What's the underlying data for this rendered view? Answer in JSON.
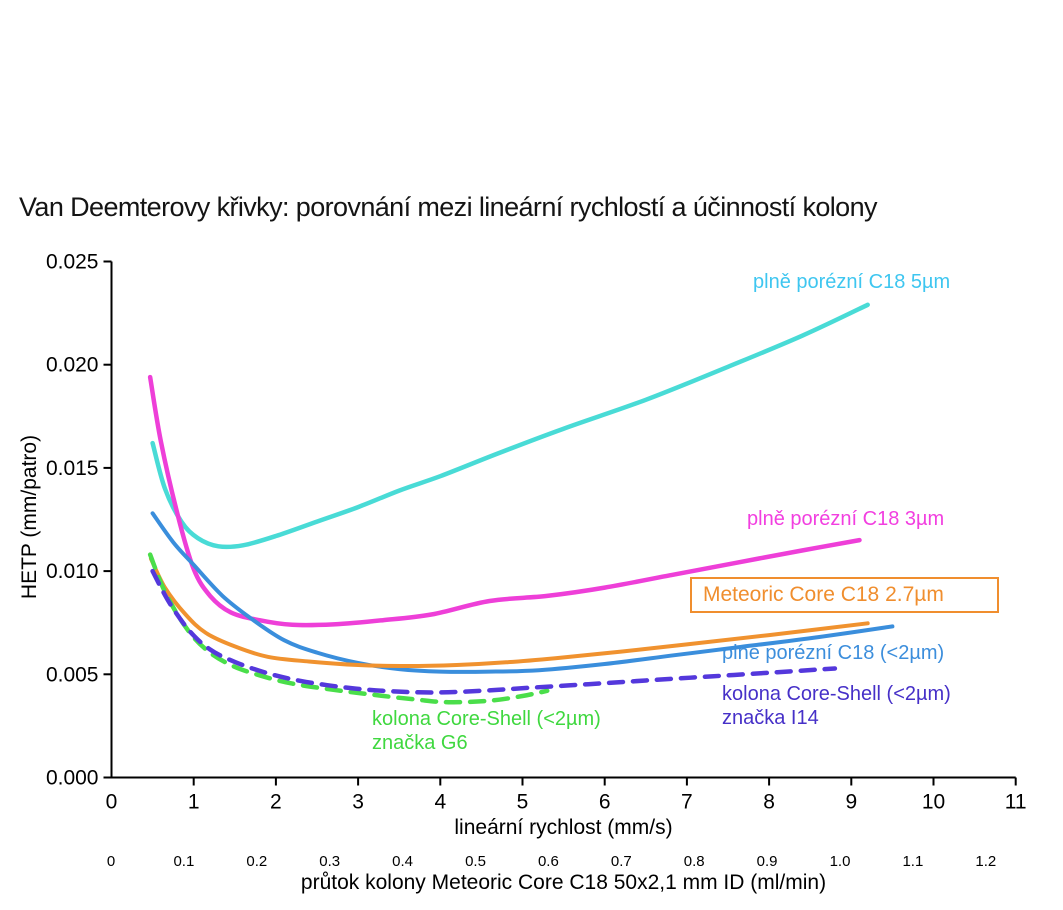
{
  "chart_data": {
    "type": "line",
    "title": "Van Deemterovy křivky: porovnání mezi lineární rychlostí a účinností kolony",
    "xlabel": "lineární rychlost (mm/s)",
    "x2label": "průtok kolony Meteoric Core C18 50x2,1 mm ID (ml/min)",
    "ylabel": "HETP (mm/patro)",
    "xlim": [
      0,
      11
    ],
    "ylim": [
      0.0,
      0.025
    ],
    "grid": false,
    "axis_color": "#000000",
    "legend_position": "inline-annotations",
    "x_ticks": [
      0,
      1,
      2,
      3,
      4,
      5,
      6,
      7,
      8,
      9,
      10,
      11
    ],
    "y_ticks": [
      "0.000",
      "0.005",
      "0.010",
      "0.015",
      "0.020",
      "0.025"
    ],
    "x2_ticks": [
      "0",
      "0.1",
      "0.2",
      "0.3",
      "0.4",
      "0.5",
      "0.6",
      "0.7",
      "0.8",
      "0.9",
      "1.0",
      "1.1",
      "1.2"
    ],
    "series": [
      {
        "id": "plne-porezni-c18-5um",
        "name": "plně porézní C18 5µm",
        "label_lines": [
          "plně porézní C18 5µm"
        ],
        "color": "#49DBD6",
        "label_color": "#3EC6F0",
        "dashed": false,
        "boxed": false,
        "stroke_width": 4.5,
        "points": [
          [
            0.5,
            0.0162
          ],
          [
            0.65,
            0.014
          ],
          [
            0.85,
            0.0124
          ],
          [
            1.05,
            0.0116
          ],
          [
            1.3,
            0.0112
          ],
          [
            1.6,
            0.01125
          ],
          [
            2.0,
            0.0117
          ],
          [
            2.5,
            0.0124
          ],
          [
            3.0,
            0.0131
          ],
          [
            3.5,
            0.0139
          ],
          [
            4.0,
            0.0146
          ],
          [
            4.7,
            0.0157
          ],
          [
            5.5,
            0.0169
          ],
          [
            6.5,
            0.0183
          ],
          [
            7.5,
            0.0199
          ],
          [
            8.4,
            0.0214
          ],
          [
            9.2,
            0.0229
          ]
        ]
      },
      {
        "id": "plne-porezni-c18-3um",
        "name": "plně porézní C18 3µm",
        "label_lines": [
          "plně porézní C18 3µm"
        ],
        "color": "#EE3FD8",
        "label_color": "#F23FE0",
        "dashed": false,
        "boxed": false,
        "stroke_width": 4.5,
        "points": [
          [
            0.47,
            0.0194
          ],
          [
            0.6,
            0.0163
          ],
          [
            0.8,
            0.0128
          ],
          [
            1.0,
            0.0101
          ],
          [
            1.2,
            0.0088
          ],
          [
            1.45,
            0.008
          ],
          [
            1.8,
            0.00762
          ],
          [
            2.2,
            0.0074
          ],
          [
            2.7,
            0.00742
          ],
          [
            3.3,
            0.00762
          ],
          [
            3.9,
            0.0079
          ],
          [
            4.6,
            0.00855
          ],
          [
            5.3,
            0.0088
          ],
          [
            6.0,
            0.0092
          ],
          [
            6.8,
            0.0098
          ],
          [
            7.6,
            0.0104
          ],
          [
            8.4,
            0.011
          ],
          [
            9.1,
            0.0115
          ]
        ]
      },
      {
        "id": "plne-porezni-c18-sub2um",
        "name": "plně porézní C18 (<2µm)",
        "label_lines": [
          "plně porézní C18 (<2µm)"
        ],
        "color": "#3A8EDC",
        "label_color": "#3C8EDC",
        "dashed": false,
        "boxed": false,
        "stroke_width": 4,
        "points": [
          [
            0.5,
            0.0128
          ],
          [
            0.75,
            0.0114
          ],
          [
            1.0,
            0.0103
          ],
          [
            1.35,
            0.0088
          ],
          [
            1.7,
            0.0077
          ],
          [
            2.1,
            0.00665
          ],
          [
            2.5,
            0.00605
          ],
          [
            3.0,
            0.00555
          ],
          [
            3.5,
            0.00525
          ],
          [
            4.0,
            0.00513
          ],
          [
            4.6,
            0.00513
          ],
          [
            5.2,
            0.0052
          ],
          [
            6.0,
            0.0055
          ],
          [
            6.8,
            0.0059
          ],
          [
            7.6,
            0.0063
          ],
          [
            8.6,
            0.0068
          ],
          [
            9.5,
            0.00732
          ]
        ]
      },
      {
        "id": "meteoric-core-c18-2-7um",
        "name": "Meteoric Core C18 2.7µm",
        "label_lines": [
          "Meteoric Core C18 2.7µm"
        ],
        "color": "#F0922F",
        "label_color": "#F08E2E",
        "dashed": false,
        "boxed": true,
        "stroke_width": 4,
        "points": [
          [
            0.48,
            0.0106
          ],
          [
            0.65,
            0.0092
          ],
          [
            0.9,
            0.0079
          ],
          [
            1.15,
            0.007
          ],
          [
            1.5,
            0.00635
          ],
          [
            1.9,
            0.00585
          ],
          [
            2.4,
            0.00562
          ],
          [
            3.0,
            0.00545
          ],
          [
            3.6,
            0.0054
          ],
          [
            4.2,
            0.00545
          ],
          [
            4.8,
            0.00558
          ],
          [
            5.4,
            0.00578
          ],
          [
            6.2,
            0.0061
          ],
          [
            7.0,
            0.00645
          ],
          [
            8.0,
            0.0069
          ],
          [
            9.2,
            0.00747
          ]
        ]
      },
      {
        "id": "core-shell-g6",
        "name": "kolona Core-Shell (<2µm) značka G6",
        "label_lines": [
          "kolona Core-Shell (<2µm)",
          "značka G6"
        ],
        "color": "#4ADE4A",
        "label_color": "#3FD83F",
        "dashed": true,
        "boxed": false,
        "stroke_width": 4.5,
        "points": [
          [
            0.47,
            0.0108
          ],
          [
            0.65,
            0.009
          ],
          [
            0.9,
            0.0073
          ],
          [
            1.15,
            0.0062
          ],
          [
            1.45,
            0.00545
          ],
          [
            1.8,
            0.00495
          ],
          [
            2.2,
            0.00455
          ],
          [
            2.7,
            0.00425
          ],
          [
            3.2,
            0.004
          ],
          [
            3.7,
            0.00378
          ],
          [
            4.1,
            0.00365
          ],
          [
            4.6,
            0.00372
          ],
          [
            5.0,
            0.00395
          ],
          [
            5.3,
            0.0042
          ]
        ]
      },
      {
        "id": "core-shell-i14",
        "name": "kolona Core-Shell (<2µm) značka I14",
        "label_lines": [
          "kolona Core-Shell (<2µm)",
          "značka I14"
        ],
        "color": "#5438DC",
        "label_color": "#4630C8",
        "dashed": true,
        "boxed": false,
        "stroke_width": 4.5,
        "points": [
          [
            0.5,
            0.01
          ],
          [
            0.7,
            0.0085
          ],
          [
            0.95,
            0.0071
          ],
          [
            1.2,
            0.0062
          ],
          [
            1.5,
            0.0056
          ],
          [
            1.9,
            0.00505
          ],
          [
            2.3,
            0.00468
          ],
          [
            2.8,
            0.00438
          ],
          [
            3.3,
            0.0042
          ],
          [
            3.9,
            0.00412
          ],
          [
            4.5,
            0.0042
          ],
          [
            5.1,
            0.00435
          ],
          [
            5.8,
            0.00452
          ],
          [
            6.5,
            0.0047
          ],
          [
            7.3,
            0.0049
          ],
          [
            8.1,
            0.0051
          ],
          [
            8.8,
            0.00528
          ]
        ]
      }
    ]
  }
}
